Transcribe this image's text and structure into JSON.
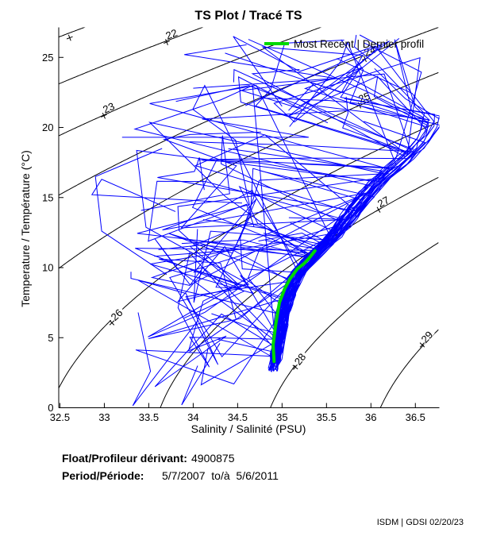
{
  "title": "TS Plot / Tracé TS",
  "legend": {
    "label": "Most Recent | Dernier profil",
    "color": "#00d900"
  },
  "footer": {
    "float_label": "Float/Profileur dérivant:",
    "float_value": "4900875",
    "period_label": "Period/Période:",
    "period_value": "5/7/2007  to/à  5/6/2011"
  },
  "watermark": "ISDM | GDSI 02/20/23",
  "chart_data": {
    "type": "line",
    "title": "TS Plot / Tracé TS",
    "xlabel": "Salinity / Salinité (PSU)",
    "ylabel": "Temperature / Température (°C)",
    "xlim": [
      32.487,
      36.77
    ],
    "ylim": [
      0,
      27.14
    ],
    "grid": false,
    "legend_position": "top-right",
    "x_ticks": [
      {
        "v": 32.5,
        "label": "32.5"
      },
      {
        "v": 33,
        "label": "33"
      },
      {
        "v": 33.5,
        "label": "33.5"
      },
      {
        "v": 34,
        "label": "34"
      },
      {
        "v": 34.5,
        "label": "34.5"
      },
      {
        "v": 35,
        "label": "35"
      },
      {
        "v": 35.5,
        "label": "35.5"
      },
      {
        "v": 36,
        "label": "36"
      },
      {
        "v": 36.5,
        "label": "36.5"
      }
    ],
    "y_ticks": [
      {
        "v": 0,
        "label": "0"
      },
      {
        "v": 5,
        "label": "5"
      },
      {
        "v": 10,
        "label": "10"
      },
      {
        "v": 15,
        "label": "15"
      },
      {
        "v": 20,
        "label": "20"
      },
      {
        "v": 25,
        "label": "25"
      }
    ],
    "density_contours": {
      "color": "#000000",
      "levels": [
        21,
        22,
        23,
        24,
        25,
        26,
        27,
        28,
        29
      ],
      "labels": [
        {
          "level": 22,
          "text": "22",
          "s": 33.755,
          "t": 26.65
        },
        {
          "level": 23,
          "text": "23",
          "s": 33.049,
          "t": 21.4
        },
        {
          "level": 24,
          "text": "24",
          "s": 35.988,
          "t": 25.46
        },
        {
          "level": 25,
          "text": "25",
          "s": 35.925,
          "t": 22.14
        },
        {
          "level": 26,
          "text": "26",
          "s": 33.139,
          "t": 6.63
        },
        {
          "level": 27,
          "text": "27",
          "s": 36.14,
          "t": 14.69
        },
        {
          "level": 28,
          "text": "28",
          "s": 35.202,
          "t": 3.47
        },
        {
          "level": 29,
          "text": "29",
          "s": 36.631,
          "t": 5.05
        }
      ],
      "plus_marks": [
        {
          "level": 21,
          "s": 32.61,
          "t": 26.4
        }
      ]
    },
    "most_recent_profile": {
      "color": "#00d900",
      "points": [
        [
          34.91,
          3.3
        ],
        [
          34.9,
          4.5
        ],
        [
          34.93,
          6.0
        ],
        [
          34.97,
          7.5
        ],
        [
          35.03,
          8.5
        ],
        [
          35.09,
          9.2
        ],
        [
          35.17,
          9.9
        ],
        [
          35.25,
          10.3
        ],
        [
          35.32,
          10.8
        ],
        [
          35.37,
          11.2
        ]
      ]
    },
    "profiles": {
      "color": "#0000ff",
      "band_centerline": [
        [
          2.55,
          34.9
        ],
        [
          3.3,
          34.92
        ],
        [
          5,
          34.97
        ],
        [
          6.4,
          34.99
        ],
        [
          8,
          35.07
        ],
        [
          9.2,
          35.13
        ],
        [
          10.5,
          35.3
        ],
        [
          12,
          35.55
        ],
        [
          13.5,
          35.74
        ],
        [
          14.8,
          35.89
        ],
        [
          16,
          36.05
        ],
        [
          17.6,
          36.34
        ],
        [
          18.7,
          36.5
        ],
        [
          19.6,
          36.63
        ],
        [
          21.5,
          36.7
        ]
      ],
      "generated": {
        "seed": 9,
        "n_band": 85,
        "n_left": 32,
        "n_top": 13
      },
      "extra": [
        [
          [
            34.05,
            6.2
          ],
          [
            33.32,
            0.15
          ],
          [
            33.52,
            2.6
          ],
          [
            33.38,
            6.8
          ]
        ],
        [
          [
            34.55,
            14.6
          ],
          [
            32.86,
            15.2
          ],
          [
            32.97,
            16.3
          ],
          [
            33.8,
            14.0
          ]
        ],
        [
          [
            33.65,
            18.5
          ],
          [
            32.9,
            16.5
          ],
          [
            32.97,
            12.6
          ],
          [
            33.7,
            9.5
          ]
        ],
        [
          [
            33.2,
            19.3
          ],
          [
            35.3,
            19.3
          ],
          [
            34.1,
            20.6
          ],
          [
            35.75,
            21.2
          ]
        ],
        [
          [
            35.0,
            21.5
          ],
          [
            34.45,
            26.5
          ],
          [
            35.2,
            24.0
          ],
          [
            36.05,
            25.8
          ],
          [
            36.45,
            22.5
          ]
        ],
        [
          [
            34.0,
            22.8
          ],
          [
            35.6,
            23.5
          ],
          [
            33.9,
            25.2
          ],
          [
            34.6,
            25.9
          ]
        ],
        [
          [
            34.3,
            4.6
          ],
          [
            33.87,
            0.2
          ],
          [
            34.05,
            3.0
          ]
        ]
      ]
    }
  }
}
